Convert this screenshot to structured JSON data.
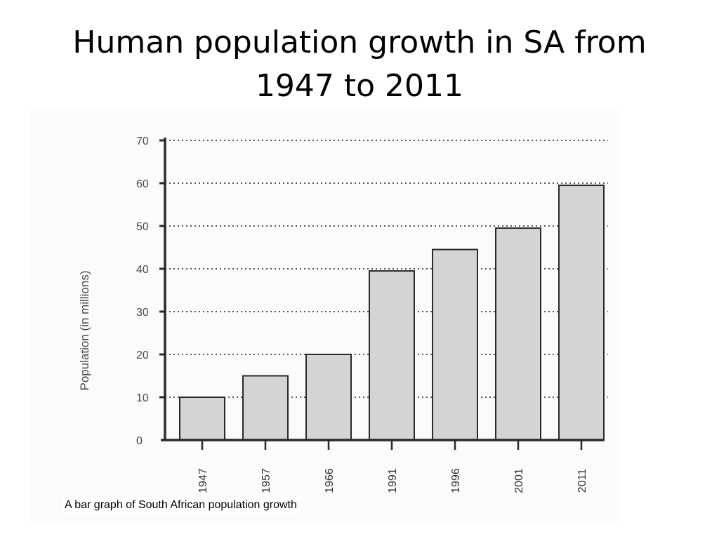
{
  "slide": {
    "title_line1": "Human population growth in SA from",
    "title_line2": "1947 to 2011",
    "caption": "A bar graph of South African population growth"
  },
  "chart_data": {
    "type": "bar",
    "title": "",
    "xlabel": "",
    "ylabel": "Population (in millions)",
    "categories": [
      "1947",
      "1957",
      "1966",
      "1991",
      "1996",
      "2001",
      "2011"
    ],
    "values": [
      10,
      15,
      20,
      39.5,
      44.5,
      49.5,
      59.5
    ],
    "ylim": [
      0,
      70
    ],
    "yticks": [
      0,
      10,
      20,
      30,
      40,
      50,
      60,
      70
    ],
    "grid": true,
    "legend": "none",
    "colors": {
      "bar_fill": "#d4d4d4",
      "bar_stroke": "#2a2a2a",
      "axis": "#2a2a2a",
      "grid": "#555555"
    }
  }
}
